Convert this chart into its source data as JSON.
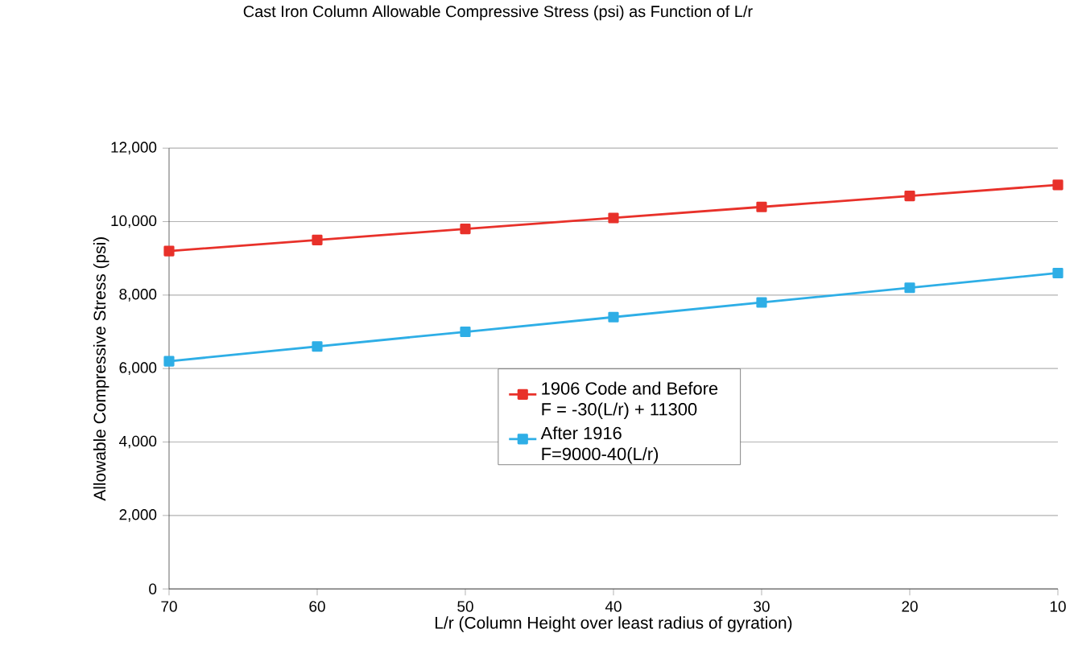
{
  "chart_data": {
    "type": "line",
    "title": "Cast Iron Column Allowable Compressive Stress (psi) as Function of L/r",
    "xlabel": "L/r (Column Height over least radius of gyration)",
    "ylabel": "Allowable Compressive Stress (psi)",
    "x": [
      70,
      60,
      50,
      40,
      30,
      20,
      10
    ],
    "series": [
      {
        "name": "1906 Code and Before F = -30(L/r) + 11300",
        "color": "#e8312a",
        "values": [
          9200,
          9500,
          9800,
          10100,
          10400,
          10700,
          11000
        ]
      },
      {
        "name": "After 1916 F=9000-40(L/r)",
        "color": "#2eaee6",
        "values": [
          6200,
          6600,
          7000,
          7400,
          7800,
          8200,
          8600
        ]
      }
    ],
    "xlim": [
      70,
      10
    ],
    "xticks": [
      70,
      60,
      50,
      40,
      30,
      20,
      10
    ],
    "ylim": [
      0,
      12000
    ],
    "yticks": [
      {
        "value": 0,
        "label": "0"
      },
      {
        "value": 2000,
        "label": "2,000"
      },
      {
        "value": 4000,
        "label": "4,000"
      },
      {
        "value": 6000,
        "label": "6,000"
      },
      {
        "value": 8000,
        "label": "8,000"
      },
      {
        "value": 10000,
        "label": "10,000"
      },
      {
        "value": 12000,
        "label": "12,000"
      }
    ],
    "grid": "y",
    "legend": "bottom right",
    "marker": "square",
    "line_style": "solid"
  }
}
